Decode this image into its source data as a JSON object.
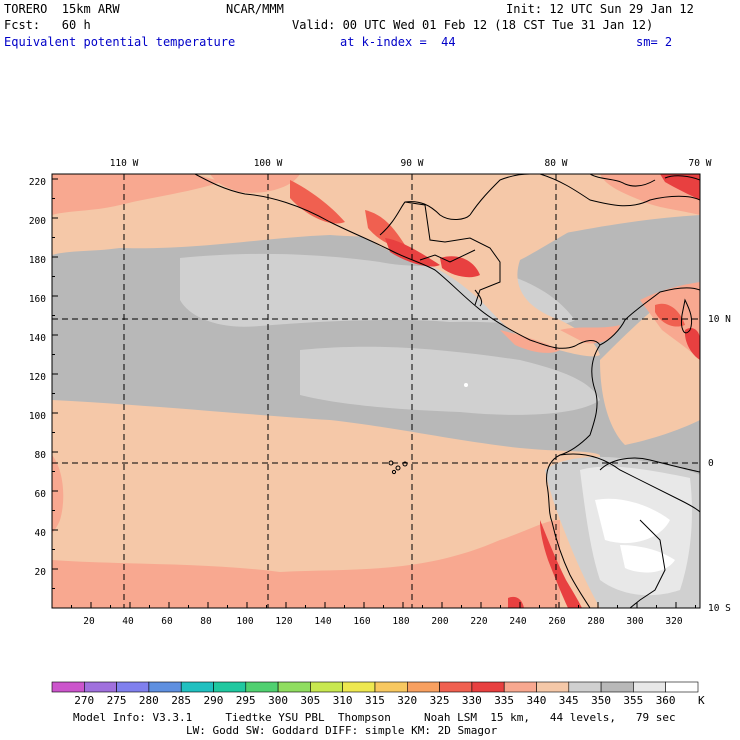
{
  "header": {
    "model_name": "TORERO  15km ARW",
    "institution": "NCAR/MMM",
    "init": "Init: 12 UTC Sun 29 Jan 12",
    "fcst": "Fcst:   60 h",
    "valid": "Valid: 00 UTC Wed 01 Feb 12 (18 CST Tue 31 Jan 12)",
    "field": "Equivalent potential temperature",
    "level": "at k-index =  44",
    "smoothing": "sm= 2"
  },
  "map": {
    "lon_labels": [
      "110 W",
      "100 W",
      "90 W",
      "80 W",
      "70 W"
    ],
    "lat_labels": [
      "10 N",
      "0",
      "10 S"
    ],
    "y_grid_labels": [
      "220",
      "200",
      "180",
      "160",
      "140",
      "120",
      "100",
      "80",
      "60",
      "40",
      "20"
    ],
    "x_grid_labels": [
      "20",
      "40",
      "60",
      "80",
      "100",
      "120",
      "140",
      "160",
      "180",
      "200",
      "220",
      "240",
      "260",
      "280",
      "300",
      "320"
    ]
  },
  "colorbar": {
    "unit": "K",
    "labels": [
      "270",
      "275",
      "280",
      "285",
      "290",
      "295",
      "300",
      "305",
      "310",
      "315",
      "320",
      "325",
      "330",
      "335",
      "340",
      "345",
      "350",
      "355",
      "360"
    ],
    "colors": [
      "#cc55cc",
      "#a070dd",
      "#8080ee",
      "#5f90e0",
      "#20c0c0",
      "#20c8a0",
      "#50d070",
      "#90dd60",
      "#c8e850",
      "#eee850",
      "#f8c860",
      "#f8a060",
      "#f06050",
      "#e84040",
      "#f8a890",
      "#f5c8a8",
      "#d0d0d0",
      "#b8b8b8",
      "#e8e8e8",
      "#ffffff"
    ]
  },
  "footer": {
    "line1": "Model Info: V3.3.1     Tiedtke YSU PBL  Thompson     Noah LSM  15 km,   44 levels,   79 sec",
    "line2": "LW: Godd SW: Goddard DIFF: simple KM: 2D Smagor"
  }
}
